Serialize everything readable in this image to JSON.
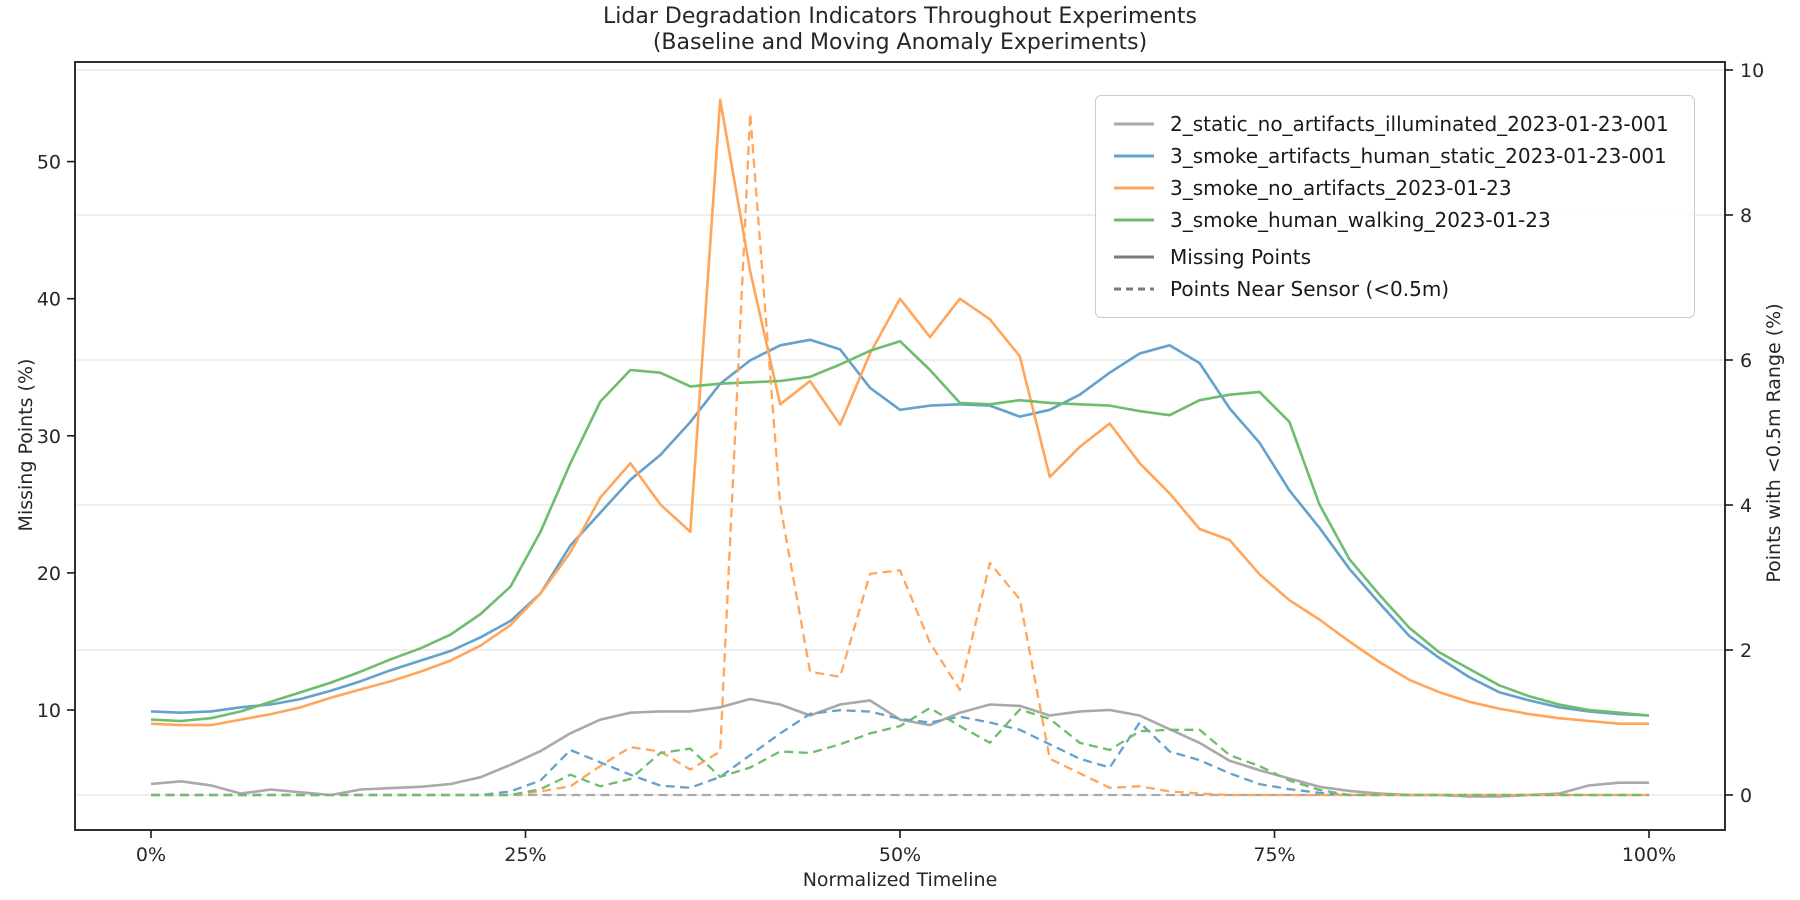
{
  "title": {
    "line1": "Lidar Degradation Indicators Throughout Experiments",
    "line2": "(Baseline and Moving Anomaly Experiments)"
  },
  "axes": {
    "x": {
      "label": "Normalized Timeline",
      "tick_labels": [
        "0%",
        "25%",
        "50%",
        "75%",
        "100%"
      ],
      "tick_values": [
        0,
        25,
        50,
        75,
        100
      ]
    },
    "y_left": {
      "label": "Missing Points (%)",
      "ticks": [
        10,
        20,
        30,
        40,
        50
      ]
    },
    "y_right": {
      "label": "Points with <0.5m Range (%)",
      "ticks": [
        0,
        2,
        4,
        6,
        8,
        10
      ],
      "grid": true
    }
  },
  "style": {
    "grid_color": "#e9e9e9",
    "spine_color": "#1a1a1a",
    "tick_text_color": "#262626",
    "legend_handle_gray": "#7a7a7a"
  },
  "chart_data": {
    "type": "line",
    "title": "Lidar Degradation Indicators Throughout Experiments (Baseline and Moving Anomaly Experiments)",
    "xlabel": "Normalized Timeline",
    "ylabel_left": "Missing Points (%)",
    "ylabel_right": "Points with <0.5m Range (%)",
    "legend_position": "upper right",
    "x_percent": [
      0,
      2,
      4,
      6,
      8,
      10,
      12,
      14,
      16,
      18,
      20,
      22,
      24,
      26,
      28,
      30,
      32,
      34,
      36,
      38,
      40,
      42,
      44,
      46,
      48,
      50,
      52,
      54,
      56,
      58,
      60,
      62,
      64,
      66,
      68,
      70,
      72,
      74,
      76,
      78,
      80,
      82,
      84,
      86,
      88,
      90,
      92,
      94,
      96,
      98,
      100
    ],
    "series": [
      {
        "name": "2_static_no_artifacts_illuminated_2023-01-23-001",
        "color": "#a9a9a9",
        "missing_points": [
          4.6,
          4.8,
          4.5,
          3.9,
          4.2,
          4.0,
          3.8,
          4.2,
          4.3,
          4.4,
          4.6,
          5.1,
          6.0,
          7.0,
          8.3,
          9.3,
          9.8,
          9.9,
          9.9,
          10.2,
          10.8,
          10.4,
          9.6,
          10.4,
          10.7,
          9.3,
          8.9,
          9.8,
          10.4,
          10.3,
          9.6,
          9.9,
          10.0,
          9.6,
          8.6,
          7.6,
          6.3,
          5.6,
          5.0,
          4.4,
          4.1,
          3.9,
          3.8,
          3.8,
          3.7,
          3.7,
          3.8,
          3.9,
          4.5,
          4.7,
          4.7
        ],
        "points_near_sensor": [
          0,
          0,
          0,
          0,
          0,
          0,
          0,
          0,
          0,
          0,
          0,
          0,
          0,
          0,
          0,
          0,
          0,
          0,
          0,
          0,
          0,
          0,
          0,
          0,
          0,
          0,
          0,
          0,
          0,
          0,
          0,
          0,
          0,
          0,
          0,
          0,
          0,
          0,
          0,
          0,
          0,
          0,
          0,
          0,
          0,
          0,
          0,
          0,
          0,
          0,
          0
        ]
      },
      {
        "name": "3_smoke_artifacts_human_static_2023-01-23-001",
        "color": "#64a1cc",
        "missing_points": [
          9.9,
          9.8,
          9.9,
          10.2,
          10.4,
          10.8,
          11.4,
          12.1,
          12.9,
          13.6,
          14.3,
          15.3,
          16.5,
          18.5,
          22.0,
          24.4,
          26.8,
          28.6,
          31.0,
          33.8,
          35.5,
          36.6,
          37.0,
          36.3,
          33.5,
          31.9,
          32.2,
          32.3,
          32.2,
          31.4,
          31.9,
          33.0,
          34.6,
          36.0,
          36.6,
          35.3,
          32.0,
          29.5,
          26.0,
          23.3,
          20.3,
          17.8,
          15.4,
          13.8,
          12.4,
          11.3,
          10.7,
          10.2,
          9.9,
          9.7,
          9.6
        ],
        "points_near_sensor": [
          0,
          0,
          0,
          0,
          0,
          0,
          0,
          0,
          0,
          0,
          0,
          0,
          0.05,
          0.2,
          0.62,
          0.45,
          0.28,
          0.13,
          0.1,
          0.25,
          0.55,
          0.85,
          1.12,
          1.17,
          1.15,
          1.05,
          1.0,
          1.08,
          1.0,
          0.9,
          0.7,
          0.5,
          0.38,
          1.0,
          0.6,
          0.48,
          0.3,
          0.15,
          0.08,
          0.03,
          0,
          0,
          0,
          0,
          0,
          0,
          0,
          0,
          0,
          0,
          0
        ]
      },
      {
        "name": "3_smoke_no_artifacts_2023-01-23",
        "color": "#ffa65c",
        "missing_points": [
          9.0,
          8.9,
          8.9,
          9.3,
          9.7,
          10.2,
          10.9,
          11.5,
          12.1,
          12.8,
          13.6,
          14.7,
          16.2,
          18.5,
          21.5,
          25.5,
          28.0,
          25.0,
          23.0,
          54.5,
          42.0,
          32.3,
          34.0,
          30.8,
          36.0,
          40.0,
          37.2,
          40.0,
          38.5,
          35.8,
          27.0,
          29.2,
          30.9,
          28.0,
          25.8,
          23.2,
          22.4,
          19.9,
          18.0,
          16.6,
          15.0,
          13.5,
          12.2,
          11.3,
          10.6,
          10.1,
          9.7,
          9.4,
          9.2,
          9.0,
          9.0
        ],
        "points_near_sensor": [
          0,
          0,
          0,
          0,
          0,
          0,
          0,
          0,
          0,
          0,
          0,
          0,
          0,
          0.05,
          0.12,
          0.4,
          0.66,
          0.6,
          0.35,
          0.6,
          9.4,
          4.0,
          1.7,
          1.63,
          3.05,
          3.1,
          2.1,
          1.45,
          3.2,
          2.7,
          0.5,
          0.3,
          0.1,
          0.12,
          0.05,
          0.02,
          0,
          0,
          0,
          0,
          0,
          0,
          0,
          0,
          0,
          0,
          0,
          0,
          0,
          0,
          0
        ]
      },
      {
        "name": "3_smoke_human_walking_2023-01-23",
        "color": "#6dbd6d",
        "missing_points": [
          9.3,
          9.2,
          9.4,
          9.9,
          10.6,
          11.3,
          12.0,
          12.8,
          13.7,
          14.5,
          15.5,
          17.0,
          19.0,
          23.0,
          28.0,
          32.5,
          34.8,
          34.6,
          33.6,
          33.8,
          33.9,
          34.0,
          34.3,
          35.2,
          36.2,
          36.9,
          34.8,
          32.4,
          32.3,
          32.6,
          32.4,
          32.3,
          32.2,
          31.8,
          31.5,
          32.6,
          33.0,
          33.2,
          31.0,
          25.0,
          21.0,
          18.4,
          16.0,
          14.2,
          13.0,
          11.8,
          11.0,
          10.4,
          10.0,
          9.8,
          9.6
        ],
        "points_near_sensor": [
          0,
          0,
          0,
          0,
          0,
          0,
          0,
          0,
          0,
          0,
          0,
          0,
          0,
          0.08,
          0.28,
          0.12,
          0.22,
          0.58,
          0.64,
          0.25,
          0.38,
          0.6,
          0.58,
          0.7,
          0.85,
          0.95,
          1.2,
          0.95,
          0.72,
          1.18,
          1.05,
          0.72,
          0.62,
          0.88,
          0.9,
          0.9,
          0.55,
          0.4,
          0.2,
          0.07,
          0,
          0,
          0,
          0,
          0,
          0,
          0,
          0,
          0,
          0,
          0
        ]
      }
    ],
    "style_legend": [
      {
        "label": "Missing Points",
        "style": "solid"
      },
      {
        "label": "Points Near Sensor (<0.5m)",
        "style": "dashed"
      }
    ]
  }
}
